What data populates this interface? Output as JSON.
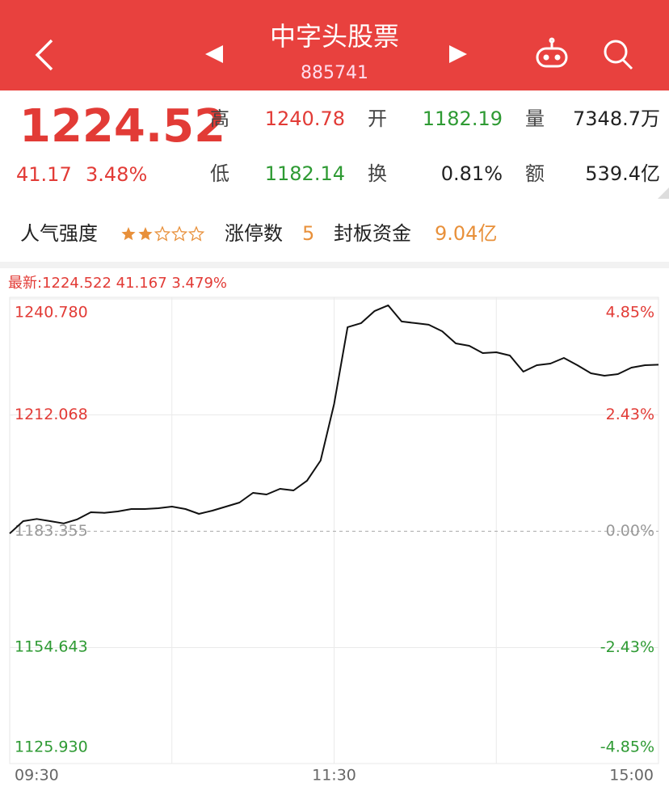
{
  "header": {
    "title": "中字头股票",
    "code": "885741"
  },
  "quote": {
    "price": "1224.52",
    "change": "41.17",
    "change_pct": "3.48%",
    "fields": [
      {
        "label": "高",
        "value": "1240.78",
        "color": "#e23b36"
      },
      {
        "label": "开",
        "value": "1182.19",
        "color": "#2e9a33"
      },
      {
        "label": "量",
        "value": "7348.7万",
        "color": "#222222"
      },
      {
        "label": "低",
        "value": "1182.14",
        "color": "#2e9a33"
      },
      {
        "label": "换",
        "value": "0.81%",
        "color": "#222222"
      },
      {
        "label": "额",
        "value": "539.4亿",
        "color": "#222222"
      }
    ]
  },
  "stats": {
    "popularity_label": "人气强度",
    "stars": {
      "filled": 2,
      "total": 5
    },
    "limit_up_label": "涨停数",
    "limit_up_value": "5",
    "fund_label": "封板资金",
    "fund_value": "9.04亿"
  },
  "chart_data": {
    "type": "line",
    "latest": "最新:1224.522 41.167 3.479%",
    "x": [
      0,
      5,
      10,
      15,
      20,
      25,
      30,
      35,
      40,
      45,
      50,
      55,
      60,
      65,
      70,
      75,
      80,
      85,
      90,
      95,
      100,
      105,
      110,
      115,
      120,
      125,
      130,
      135,
      140,
      145,
      150,
      155,
      160,
      165,
      170,
      175,
      180,
      185,
      190,
      195,
      200,
      205,
      210,
      215,
      220,
      225,
      230,
      235,
      240
    ],
    "series": [
      {
        "name": "中字头股票",
        "color": "#111111",
        "values": [
          1182.8,
          1185.85,
          1186.4,
          1185.85,
          1185.3,
          1186.3,
          1188.05,
          1187.9,
          1188.25,
          1188.85,
          1188.85,
          1189.05,
          1189.45,
          1188.85,
          1187.65,
          1188.45,
          1189.45,
          1190.45,
          1192.85,
          1192.45,
          1193.85,
          1193.45,
          1195.85,
          1200.83,
          1214.8,
          1233.8,
          1234.8,
          1237.8,
          1239.2,
          1235.2,
          1234.8,
          1234.4,
          1232.8,
          1229.8,
          1229.2,
          1227.4,
          1227.6,
          1226.8,
          1222.8,
          1224.4,
          1224.8,
          1226.2,
          1224.4,
          1222.4,
          1221.8,
          1222.2,
          1223.8,
          1224.4,
          1224.52
        ]
      }
    ],
    "xlim": [
      0,
      240
    ],
    "xticks": [
      {
        "value": 0,
        "label": "09:30"
      },
      {
        "value": 120,
        "label": "11:30"
      },
      {
        "value": 240,
        "label": "15:00"
      }
    ],
    "xgrid": [
      60,
      120,
      180
    ],
    "ylim": [
      1125.93,
      1240.78
    ],
    "yticks": [
      {
        "value": 1240.78,
        "label": "1240.780"
      },
      1212.068,
      1183.355,
      1154.643,
      {
        "value": 1125.93,
        "label": "1125.930"
      }
    ],
    "y2lim": [
      -4.85,
      4.85
    ],
    "y2ticks": [
      {
        "value": 4.85,
        "label": "4.85%"
      },
      {
        "value": 2.43,
        "label": "2.43%"
      },
      {
        "value": 0,
        "label": "0.00%"
      },
      {
        "value": -2.43,
        "label": "-2.43%"
      },
      {
        "value": -4.85,
        "label": "-4.85%"
      }
    ],
    "up_color": "#e23b36",
    "down_color": "#2e9a33",
    "flat_color": "#999999"
  }
}
